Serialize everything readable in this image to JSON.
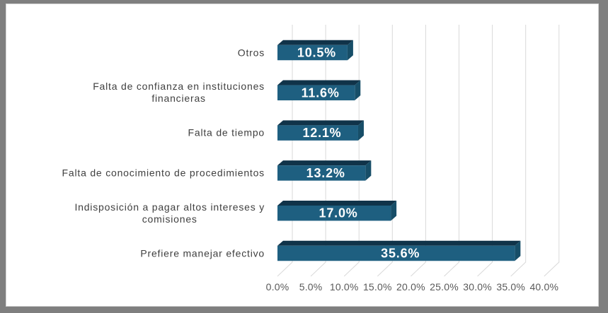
{
  "chart_data": {
    "type": "bar",
    "orientation": "horizontal",
    "effect": "3d",
    "title": "",
    "grid": "vertical",
    "legend": "none",
    "categories": [
      {
        "label_lines": [
          "Otros"
        ],
        "value": 10.5,
        "value_label": "10.5%"
      },
      {
        "label_lines": [
          "Falta de confianza en instituciones",
          "financieras"
        ],
        "value": 11.6,
        "value_label": "11.6%"
      },
      {
        "label_lines": [
          "Falta de tiempo"
        ],
        "value": 12.1,
        "value_label": "12.1%"
      },
      {
        "label_lines": [
          "Falta de conocimiento de procedimientos"
        ],
        "value": 13.2,
        "value_label": "13.2%"
      },
      {
        "label_lines": [
          "Indisposición a pagar altos intereses y",
          "comisiones"
        ],
        "value": 17.0,
        "value_label": "17.0%"
      },
      {
        "label_lines": [
          "Prefiere manejar efectivo"
        ],
        "value": 35.6,
        "value_label": "35.6%"
      }
    ],
    "x_axis": {
      "min": 0,
      "max": 40,
      "step": 5,
      "unit": "%",
      "tick_labels": [
        "0.0%",
        "5.0%",
        "10.0%",
        "15.0%",
        "20.0%",
        "25.0%",
        "30.0%",
        "35.0%",
        "40.0%"
      ]
    },
    "colors": {
      "bar_front": "#1e5f80",
      "bar_top": "#103349",
      "bar_side": "#174e68",
      "gridline": "#d9d9d9",
      "value_label_text": "#ffffff",
      "category_label_text": "#3f3f3f",
      "axis_label_text": "#595959",
      "plot_background": "#ffffff",
      "outer_background": "#7f7f7f",
      "canvas_border": "#d3d3d3"
    }
  }
}
